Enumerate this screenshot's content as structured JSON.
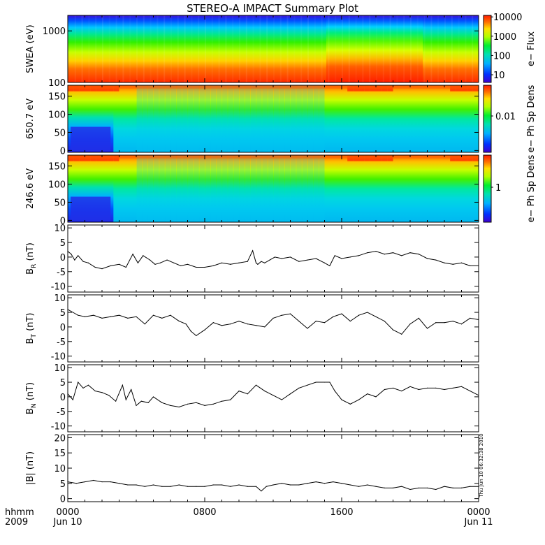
{
  "title": "STEREO-A IMPACT Summary Plot",
  "timestamp_note": "Thu Jun 10 06:32:38 2010",
  "x_axis": {
    "row1_label": "hhmm",
    "row2_label": "2009",
    "ticks": [
      {
        "pos": 0,
        "time": "0000",
        "date": "Jun 10"
      },
      {
        "pos": 8,
        "time": "0800",
        "date": ""
      },
      {
        "pos": 16,
        "time": "1600",
        "date": ""
      },
      {
        "pos": 24,
        "time": "0000",
        "date": "Jun 11"
      }
    ],
    "range_hours": [
      0,
      24
    ]
  },
  "chart_data": [
    {
      "type": "heatmap",
      "id": "swea",
      "ylabel": "SWEA (eV)",
      "yscale": "log",
      "ylim": [
        100,
        2000
      ],
      "yticks": [
        {
          "v": 1000,
          "t": "1000"
        },
        {
          "v": 100,
          "t": "100"
        }
      ],
      "colorbar": {
        "label": "e− Flux",
        "scale": "log",
        "range": [
          4,
          12000
        ],
        "ticks": [
          {
            "v": 10,
            "t": "10"
          },
          {
            "v": 100,
            "t": "100"
          },
          {
            "v": 1000,
            "t": "1000"
          },
          {
            "v": 10000,
            "t": "10000"
          }
        ]
      },
      "description_levels": "flux highest at low energy (red near 100 eV), decreasing to blue near 2000 eV; enhanced flux after ~1500"
    },
    {
      "type": "heatmap",
      "id": "pad650",
      "ylabel": "650.7 eV",
      "yscale": "linear",
      "ylim": [
        -5,
        180
      ],
      "yticks": [
        {
          "v": 150,
          "t": "150"
        },
        {
          "v": 100,
          "t": "100"
        },
        {
          "v": 50,
          "t": "50"
        },
        {
          "v": 0,
          "t": "0"
        }
      ],
      "colorbar": {
        "label": "e− Ph Sp Dens",
        "scale": "log",
        "ticks": [
          {
            "v": 0.01,
            "t": "0.01"
          }
        ]
      }
    },
    {
      "type": "heatmap",
      "id": "pad246",
      "ylabel": "246.6 eV",
      "yscale": "linear",
      "ylim": [
        -5,
        180
      ],
      "yticks": [
        {
          "v": 150,
          "t": "150"
        },
        {
          "v": 100,
          "t": "100"
        },
        {
          "v": 50,
          "t": "50"
        },
        {
          "v": 0,
          "t": "0"
        }
      ],
      "colorbar": {
        "label": "e− Ph Sp Dens",
        "scale": "log",
        "ticks": [
          {
            "v": 1,
            "t": "1"
          }
        ]
      }
    },
    {
      "type": "line",
      "id": "br",
      "ylabel": "B_R (nT)",
      "ylabel_main": "B",
      "ylabel_sub": "R",
      "ylabel_unit": " (nT)",
      "ylim": [
        -12,
        11
      ],
      "yticks": [
        {
          "v": 10,
          "t": "10"
        },
        {
          "v": 5,
          "t": "5"
        },
        {
          "v": 0,
          "t": "0"
        },
        {
          "v": -5,
          "t": "-5"
        },
        {
          "v": -10,
          "t": "-10"
        }
      ],
      "x": [
        0,
        0.2,
        0.4,
        0.6,
        0.9,
        1.2,
        1.6,
        2.0,
        2.5,
        3.0,
        3.4,
        3.8,
        4.1,
        4.4,
        4.8,
        5.1,
        5.4,
        5.8,
        6.2,
        6.6,
        7.0,
        7.5,
        8.0,
        8.5,
        9.0,
        9.5,
        10.0,
        10.5,
        10.8,
        11.0,
        11.1,
        11.3,
        11.5,
        11.8,
        12.1,
        12.5,
        13.0,
        13.5,
        14.0,
        14.5,
        15.0,
        15.3,
        15.6,
        16.0,
        16.5,
        17.0,
        17.5,
        18.0,
        18.5,
        19.0,
        19.5,
        20.0,
        20.5,
        21.0,
        21.5,
        22.0,
        22.5,
        23.0,
        23.5,
        24.0
      ],
      "values": [
        2.0,
        1.0,
        -1.0,
        0.5,
        -1.5,
        -2.0,
        -3.5,
        -4.0,
        -3.0,
        -2.5,
        -3.5,
        1.0,
        -2.0,
        0.5,
        -1.0,
        -2.5,
        -2.0,
        -1.0,
        -2.0,
        -3.0,
        -2.5,
        -3.5,
        -3.5,
        -3.0,
        -2.0,
        -2.5,
        -2.0,
        -1.5,
        2.2,
        -2.0,
        -2.5,
        -1.5,
        -2.0,
        -1.0,
        0.0,
        -0.5,
        0.0,
        -1.5,
        -1.0,
        -0.5,
        -2.0,
        -3.0,
        0.5,
        -0.5,
        0.0,
        0.5,
        1.5,
        2.0,
        1.0,
        1.5,
        0.5,
        1.5,
        1.0,
        -0.5,
        -1.0,
        -2.0,
        -2.5,
        -2.0,
        -3.0,
        -3.0
      ]
    },
    {
      "type": "line",
      "id": "bt",
      "ylabel": "B_T (nT)",
      "ylabel_main": "B",
      "ylabel_sub": "T",
      "ylabel_unit": " (nT)",
      "ylim": [
        -12,
        11
      ],
      "yticks": [
        {
          "v": 10,
          "t": "10"
        },
        {
          "v": 5,
          "t": "5"
        },
        {
          "v": 0,
          "t": "0"
        },
        {
          "v": -5,
          "t": "-5"
        },
        {
          "v": -10,
          "t": "-10"
        }
      ],
      "x": [
        0,
        0.3,
        0.6,
        1.0,
        1.5,
        2.0,
        2.5,
        3.0,
        3.5,
        4.0,
        4.5,
        5.0,
        5.5,
        6.0,
        6.5,
        6.9,
        7.2,
        7.5,
        8.0,
        8.5,
        9.0,
        9.5,
        10.0,
        10.5,
        11.0,
        11.5,
        12.0,
        12.5,
        13.0,
        13.5,
        14.0,
        14.5,
        15.0,
        15.5,
        16.0,
        16.5,
        17.0,
        17.5,
        18.0,
        18.5,
        19.0,
        19.5,
        20.0,
        20.5,
        21.0,
        21.5,
        22.0,
        22.5,
        23.0,
        23.5,
        24.0
      ],
      "values": [
        6.0,
        5.0,
        4.0,
        3.5,
        4.0,
        3.0,
        3.5,
        4.0,
        3.0,
        3.5,
        1.0,
        4.0,
        3.0,
        4.0,
        2.0,
        1.0,
        -1.5,
        -3.0,
        -1.0,
        1.5,
        0.5,
        1.0,
        2.0,
        1.0,
        0.5,
        0.0,
        3.0,
        4.0,
        4.5,
        2.0,
        -0.5,
        2.0,
        1.5,
        3.5,
        4.5,
        2.0,
        4.0,
        5.0,
        3.5,
        2.0,
        -1.0,
        -2.5,
        1.0,
        3.0,
        -0.5,
        1.5,
        1.5,
        2.0,
        1.0,
        3.0,
        2.5
      ]
    },
    {
      "type": "line",
      "id": "bn",
      "ylabel": "B_N (nT)",
      "ylabel_main": "B",
      "ylabel_sub": "N",
      "ylabel_unit": " (nT)",
      "ylim": [
        -12,
        11
      ],
      "yticks": [
        {
          "v": 10,
          "t": "10"
        },
        {
          "v": 5,
          "t": "5"
        },
        {
          "v": 0,
          "t": "0"
        },
        {
          "v": -5,
          "t": "-5"
        },
        {
          "v": -10,
          "t": "-10"
        }
      ],
      "x": [
        0,
        0.3,
        0.6,
        0.9,
        1.2,
        1.6,
        2.0,
        2.4,
        2.8,
        3.2,
        3.4,
        3.7,
        4.0,
        4.3,
        4.7,
        5.0,
        5.5,
        6.0,
        6.5,
        7.0,
        7.5,
        8.0,
        8.5,
        9.0,
        9.5,
        10.0,
        10.5,
        11.0,
        11.5,
        12.0,
        12.5,
        13.0,
        13.5,
        14.0,
        14.5,
        15.0,
        15.3,
        15.6,
        16.0,
        16.5,
        17.0,
        17.5,
        18.0,
        18.5,
        19.0,
        19.5,
        20.0,
        20.5,
        21.0,
        21.5,
        22.0,
        22.5,
        23.0,
        23.5,
        24.0
      ],
      "values": [
        1.0,
        -1.0,
        5.0,
        3.0,
        4.0,
        2.0,
        1.5,
        0.5,
        -1.5,
        4.0,
        -1.0,
        2.5,
        -3.0,
        -1.5,
        -2.0,
        0.0,
        -2.0,
        -3.0,
        -3.5,
        -2.5,
        -2.0,
        -3.0,
        -2.5,
        -1.5,
        -1.0,
        2.0,
        1.0,
        4.0,
        2.0,
        0.5,
        -1.0,
        1.0,
        3.0,
        4.0,
        5.0,
        5.0,
        5.0,
        2.0,
        -1.0,
        -2.5,
        -1.0,
        1.0,
        0.0,
        2.5,
        3.0,
        2.0,
        3.5,
        2.5,
        3.0,
        3.0,
        2.5,
        3.0,
        3.5,
        2.0,
        0.5
      ]
    },
    {
      "type": "line",
      "id": "bmag",
      "ylabel": "|B| (nT)",
      "ylabel_main": "|B|",
      "ylabel_sub": "",
      "ylabel_unit": " (nT)",
      "ylim": [
        -1,
        21
      ],
      "yticks": [
        {
          "v": 20,
          "t": "20"
        },
        {
          "v": 15,
          "t": "15"
        },
        {
          "v": 10,
          "t": "10"
        },
        {
          "v": 5,
          "t": "5"
        },
        {
          "v": 0,
          "t": "0"
        }
      ],
      "x": [
        0,
        0.5,
        1.0,
        1.5,
        2.0,
        2.5,
        3.0,
        3.5,
        4.0,
        4.5,
        5.0,
        5.5,
        6.0,
        6.5,
        7.0,
        7.5,
        8.0,
        8.5,
        9.0,
        9.5,
        10.0,
        10.5,
        11.0,
        11.3,
        11.6,
        12.0,
        12.5,
        13.0,
        13.5,
        14.0,
        14.5,
        15.0,
        15.5,
        16.0,
        16.5,
        17.0,
        17.5,
        18.0,
        18.5,
        19.0,
        19.5,
        20.0,
        20.5,
        21.0,
        21.5,
        22.0,
        22.5,
        23.0,
        23.5,
        24.0
      ],
      "values": [
        5.5,
        5.0,
        5.5,
        6.0,
        5.5,
        5.5,
        5.0,
        4.5,
        4.5,
        4.0,
        4.5,
        4.0,
        4.0,
        4.5,
        4.0,
        4.0,
        4.0,
        4.5,
        4.5,
        4.0,
        4.5,
        4.0,
        4.0,
        2.5,
        4.0,
        4.5,
        5.0,
        4.5,
        4.5,
        5.0,
        5.5,
        5.0,
        5.5,
        5.0,
        4.5,
        4.0,
        4.5,
        4.0,
        3.5,
        3.5,
        4.0,
        3.0,
        3.5,
        3.5,
        3.0,
        4.0,
        3.5,
        3.5,
        4.0,
        4.0
      ]
    }
  ]
}
